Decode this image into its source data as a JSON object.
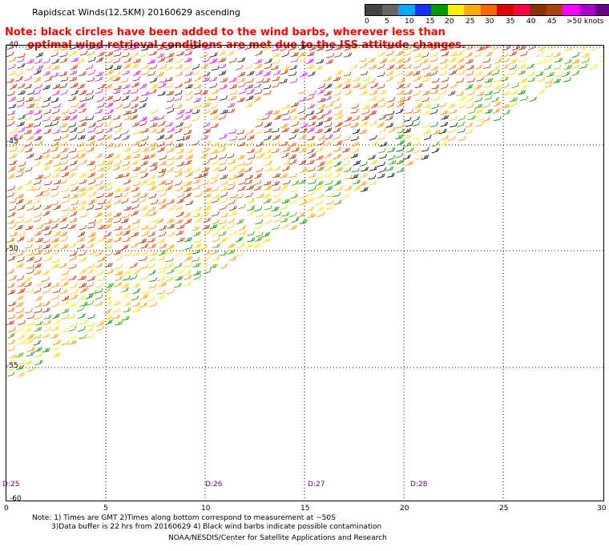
{
  "title": "Rapidscat Winds(12.5KM) 20160629 ascending",
  "legend": {
    "colors": [
      "#444444",
      "#666666",
      "#00aaff",
      "#1133ff",
      "#009900",
      "#ffee00",
      "#ffaa00",
      "#ff6600",
      "#dd0000",
      "#ff0044",
      "#883300",
      "#aa4400",
      "#ff00ff",
      "#aa00cc",
      "#660088",
      "#330055"
    ],
    "labels": [
      "0",
      "5",
      "10",
      "15",
      "20",
      "25",
      "30",
      "35",
      "40",
      "45",
      ">50 knots"
    ]
  },
  "note_lines": [
    "Note: black circles have been added to the wind barbs, wherever less than",
    "optimal wind retrieval conditions are met due to the ISS attitude changes."
  ],
  "lat_labels": [
    "-40",
    "-45",
    "-50",
    "-55",
    "-60"
  ],
  "x_ticks": [
    "0",
    "5",
    "10",
    "15",
    "20",
    "25",
    "30"
  ],
  "time_labels": [
    "D:25",
    "D:26",
    "D:27",
    "D:28"
  ],
  "footer": {
    "line1": "Note: 1) Times are GMT 2)Times along bottom correspond to measurement at ~50S",
    "line2": "3)Data buffer is 22 hrs from 20160629 4) Black wind barbs indicate possible contamination",
    "line3": "NOAA/NESDIS/Center for Satellite Applications and Research"
  }
}
